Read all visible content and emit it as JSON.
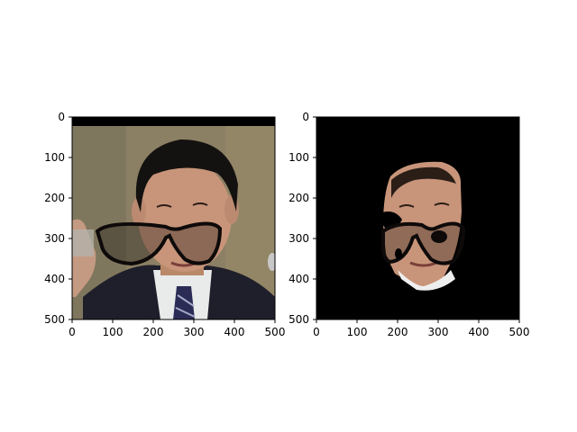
{
  "figure": {
    "panels": [
      {
        "id": "left",
        "image": "face photo with superimposed black eyeglasses",
        "x_ticks": [
          "0",
          "100",
          "200",
          "300",
          "400",
          "500"
        ],
        "y_ticks": [
          "0",
          "100",
          "200",
          "300",
          "400",
          "500"
        ],
        "xlim": [
          0,
          500
        ],
        "ylim": [
          500,
          0
        ]
      },
      {
        "id": "right",
        "image": "segmented face on black background with eyeglasses",
        "x_ticks": [
          "0",
          "100",
          "200",
          "300",
          "400",
          "500"
        ],
        "y_ticks": [
          "0",
          "100",
          "200",
          "300",
          "400",
          "500"
        ],
        "xlim": [
          0,
          500
        ],
        "ylim": [
          500,
          0
        ]
      }
    ],
    "colors": {
      "background": "#ffffff",
      "backdrop": "#8a7e62",
      "suit": "#1f1f2a",
      "skin": "#c9967a",
      "hair": "#151311",
      "glasses": "#0e0a0a",
      "mask_bg": "#000000"
    }
  }
}
